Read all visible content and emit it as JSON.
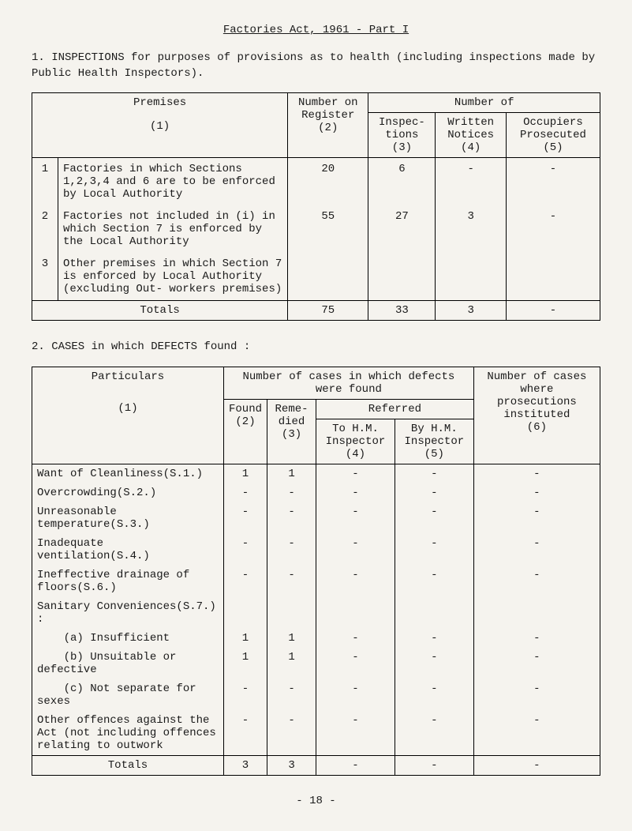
{
  "page_title": "Factories Act, 1961 - Part I",
  "section1": {
    "heading": "1. INSPECTIONS for purposes of provisions as to health (including inspections made by Public Health Inspectors).",
    "headers": {
      "premises": "Premises",
      "premises_sub": "(1)",
      "number_on_register": "Number on Register",
      "number_on_register_sub": "(2)",
      "number_of": "Number of",
      "inspections": "Inspec- tions",
      "inspections_sub": "(3)",
      "written_notices": "Written Notices",
      "written_notices_sub": "(4)",
      "occupiers": "Occupiers Prosecuted",
      "occupiers_sub": "(5)"
    },
    "rows": [
      {
        "n": "1",
        "label": "Factories in which Sections 1,2,3,4 and 6 are to be enforced by Local Authority",
        "c2": "20",
        "c3": "6",
        "c4": "-",
        "c5": "-"
      },
      {
        "n": "2",
        "label": "Factories not included in (i) in which Section 7 is enforced by the Local Authority",
        "c2": "55",
        "c3": "27",
        "c4": "3",
        "c5": "-"
      },
      {
        "n": "3",
        "label": "Other premises in which Section 7 is enforced by Local Authority (excluding Out- workers premises)",
        "c2": "",
        "c3": "",
        "c4": "",
        "c5": ""
      }
    ],
    "totals": {
      "label": "Totals",
      "c2": "75",
      "c3": "33",
      "c4": "3",
      "c5": "-"
    }
  },
  "section2": {
    "heading": "2.  CASES in which DEFECTS found :",
    "headers": {
      "particulars": "Particulars",
      "particulars_sub": "(1)",
      "cases_found": "Number of cases in which defects were found",
      "found": "Found",
      "found_sub": "(2)",
      "remedied": "Reme- died",
      "remedied_sub": "(3)",
      "referred": "Referred",
      "to_hm": "To H.M. Inspector",
      "to_hm_sub": "(4)",
      "by_hm": "By H.M. Inspector",
      "by_hm_sub": "(5)",
      "prosecutions": "Number of cases where prosecutions instituted",
      "prosecutions_sub": "(6)"
    },
    "rows": [
      {
        "label": "Want of Cleanliness(S.1.)",
        "c2": "1",
        "c3": "1",
        "c4": "-",
        "c5": "-",
        "c6": "-"
      },
      {
        "label": "Overcrowding(S.2.)",
        "c2": "-",
        "c3": "-",
        "c4": "-",
        "c5": "-",
        "c6": "-"
      },
      {
        "label": "Unreasonable temperature(S.3.)",
        "c2": "-",
        "c3": "-",
        "c4": "-",
        "c5": "-",
        "c6": "-"
      },
      {
        "label": "Inadequate ventilation(S.4.)",
        "c2": "-",
        "c3": "-",
        "c4": "-",
        "c5": "-",
        "c6": "-"
      },
      {
        "label": "Ineffective drainage of floors(S.6.)",
        "c2": "-",
        "c3": "-",
        "c4": "-",
        "c5": "-",
        "c6": "-"
      },
      {
        "label": "Sanitary Conveniences(S.7.) :",
        "c2": "",
        "c3": "",
        "c4": "",
        "c5": "",
        "c6": ""
      },
      {
        "label": "  (a) Insufficient",
        "c2": "1",
        "c3": "1",
        "c4": "-",
        "c5": "-",
        "c6": "-"
      },
      {
        "label": "  (b) Unsuitable or defective",
        "c2": "1",
        "c3": "1",
        "c4": "-",
        "c5": "-",
        "c6": "-"
      },
      {
        "label": "  (c) Not separate for sexes",
        "c2": "-",
        "c3": "-",
        "c4": "-",
        "c5": "-",
        "c6": "-"
      },
      {
        "label": "Other offences against the Act (not including offences relating to outwork",
        "c2": "-",
        "c3": "-",
        "c4": "-",
        "c5": "-",
        "c6": "-"
      }
    ],
    "totals": {
      "label": "Totals",
      "c2": "3",
      "c3": "3",
      "c4": "-",
      "c5": "-",
      "c6": "-"
    }
  },
  "footer": "- 18 -"
}
